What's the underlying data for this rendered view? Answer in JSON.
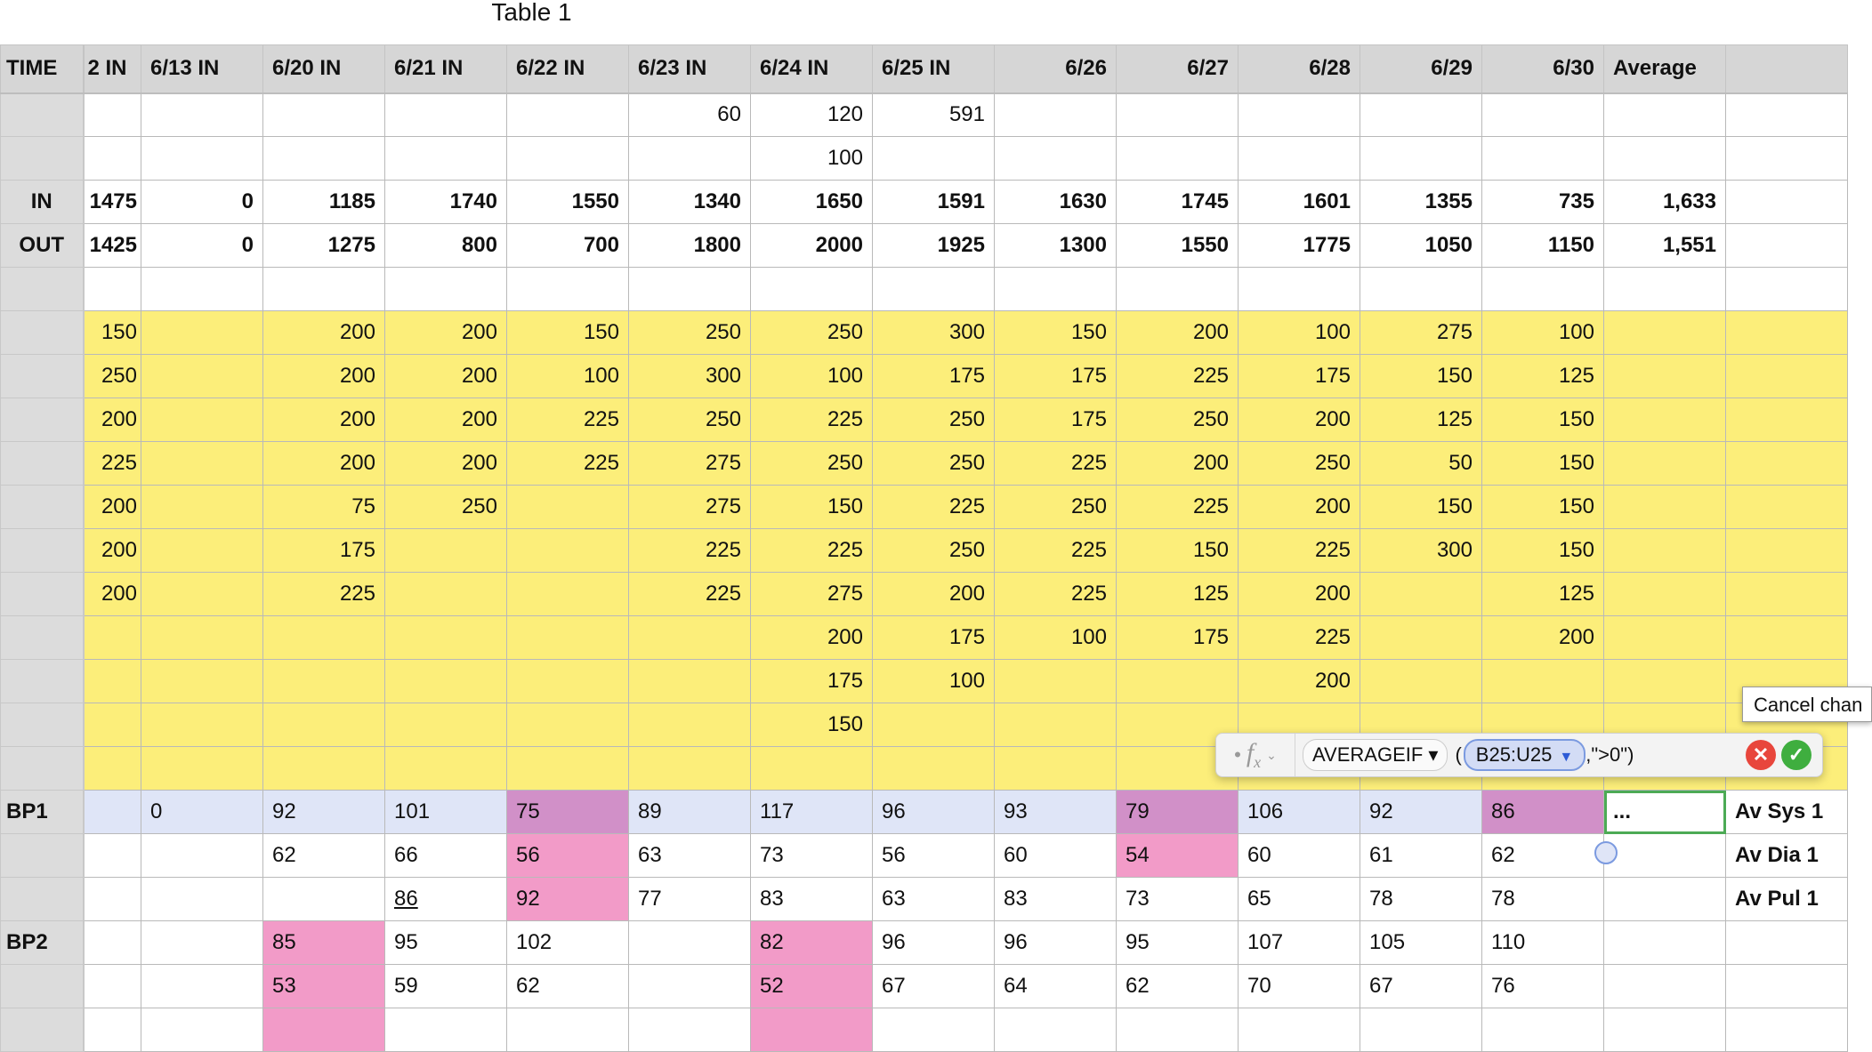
{
  "title": "Table 1",
  "colors": {
    "yellow": "#fcee7a",
    "pink": "#f29bc8",
    "purple": "#d190c8",
    "selection": "#2d5bd6",
    "edit": "#4caa55"
  },
  "header": {
    "row_label": "TIME",
    "columns": [
      "2 IN",
      "6/13 IN",
      "6/20 IN",
      "6/21 IN",
      "6/22 IN",
      "6/23 IN",
      "6/24 IN",
      "6/25 IN",
      "6/26",
      "6/27",
      "6/28",
      "6/29",
      "6/30",
      "Average",
      ""
    ],
    "right_aligned_from": 8
  },
  "rows": [
    {
      "label": "",
      "style": "r",
      "cells": [
        "",
        "",
        "",
        "",
        "",
        "60",
        "120",
        "591",
        "",
        "",
        "",
        "",
        "",
        "",
        ""
      ]
    },
    {
      "label": "",
      "style": "r",
      "cells": [
        "",
        "",
        "",
        "",
        "",
        "",
        "100",
        "",
        "",
        "",
        "",
        "",
        "",
        "",
        ""
      ]
    },
    {
      "label": "IN",
      "style": "r b",
      "cells": [
        "1475",
        "0",
        "1185",
        "1740",
        "1550",
        "1340",
        "1650",
        "1591",
        "1630",
        "1745",
        "1601",
        "1355",
        "735",
        "1,633",
        ""
      ]
    },
    {
      "label": "OUT",
      "style": "r b",
      "cells": [
        "1425",
        "0",
        "1275",
        "800",
        "700",
        "1800",
        "2000",
        "1925",
        "1300",
        "1550",
        "1775",
        "1050",
        "1150",
        "1,551",
        ""
      ]
    },
    {
      "label": "",
      "style": "r",
      "cells": [
        "",
        "",
        "",
        "",
        "",
        "",
        "",
        "",
        "",
        "",
        "",
        "",
        "",
        "",
        ""
      ]
    },
    {
      "label": "",
      "style": "r yellow",
      "cells": [
        "150",
        "",
        "200",
        "200",
        "150",
        "250",
        "250",
        "300",
        "150",
        "200",
        "100",
        "275",
        "100",
        "",
        ""
      ]
    },
    {
      "label": "",
      "style": "r yellow",
      "cells": [
        "250",
        "",
        "200",
        "200",
        "100",
        "300",
        "100",
        "175",
        "175",
        "225",
        "175",
        "150",
        "125",
        "",
        ""
      ]
    },
    {
      "label": "",
      "style": "r yellow",
      "cells": [
        "200",
        "",
        "200",
        "200",
        "225",
        "250",
        "225",
        "250",
        "175",
        "250",
        "200",
        "125",
        "150",
        "",
        ""
      ]
    },
    {
      "label": "",
      "style": "r yellow",
      "cells": [
        "225",
        "",
        "200",
        "200",
        "225",
        "275",
        "250",
        "250",
        "225",
        "200",
        "250",
        "50",
        "150",
        "",
        ""
      ]
    },
    {
      "label": "",
      "style": "r yellow",
      "cells": [
        "200",
        "",
        "75",
        "250",
        "",
        "275",
        "150",
        "225",
        "250",
        "225",
        "200",
        "150",
        "150",
        "",
        ""
      ]
    },
    {
      "label": "",
      "style": "r yellow",
      "cells": [
        "200",
        "",
        "175",
        "",
        "",
        "225",
        "225",
        "250",
        "225",
        "150",
        "225",
        "300",
        "150",
        "",
        ""
      ]
    },
    {
      "label": "",
      "style": "r yellow",
      "cells": [
        "200",
        "",
        "225",
        "",
        "",
        "225",
        "275",
        "200",
        "225",
        "125",
        "200",
        "",
        "125",
        "",
        ""
      ]
    },
    {
      "label": "",
      "style": "r yellow",
      "cells": [
        "",
        "",
        "",
        "",
        "",
        "",
        "200",
        "175",
        "100",
        "175",
        "225",
        "",
        "200",
        "",
        ""
      ]
    },
    {
      "label": "",
      "style": "r yellow",
      "cells": [
        "",
        "",
        "",
        "",
        "",
        "",
        "175",
        "100",
        "",
        "",
        "200",
        "",
        "",
        "",
        ""
      ]
    },
    {
      "label": "",
      "style": "r yellow",
      "cells": [
        "",
        "",
        "",
        "",
        "",
        "",
        "150",
        "",
        "",
        "",
        "",
        "",
        "",
        "",
        ""
      ]
    },
    {
      "label": "",
      "style": "r yellow",
      "cells": [
        "",
        "",
        "",
        "",
        "",
        "",
        "",
        "",
        "",
        "",
        "",
        "",
        "",
        "",
        ""
      ]
    },
    {
      "label": "BP1",
      "style": "l sel",
      "cells": [
        "",
        "0",
        "92",
        "101",
        "75",
        "89",
        "117",
        "96",
        "93",
        "79",
        "106",
        "92",
        "86",
        "...",
        "Av Sys 1"
      ],
      "highlights": {
        "4": "purple",
        "9": "purple",
        "12": "purple"
      },
      "edit_col": 13,
      "label_col": 14
    },
    {
      "label": "",
      "style": "l",
      "cells": [
        "",
        "",
        "62",
        "66",
        "56",
        "63",
        "73",
        "56",
        "60",
        "54",
        "60",
        "61",
        "62",
        "",
        "Av Dia 1"
      ],
      "highlights": {
        "4": "pink",
        "9": "pink"
      },
      "label_col": 14
    },
    {
      "label": "",
      "style": "l",
      "cells": [
        "",
        "",
        "",
        "86",
        "92",
        "77",
        "83",
        "63",
        "83",
        "73",
        "65",
        "78",
        "78",
        "",
        "Av Pul 1"
      ],
      "highlights": {
        "4": "pink"
      },
      "underline": [
        3
      ],
      "label_col": 14
    },
    {
      "label": "BP2",
      "style": "l thick",
      "cells": [
        "",
        "",
        "85",
        "95",
        "102",
        "",
        "82",
        "96",
        "96",
        "95",
        "107",
        "105",
        "110",
        "",
        ""
      ],
      "highlights": {
        "2": "pink",
        "6": "pink"
      }
    },
    {
      "label": "",
      "style": "l",
      "cells": [
        "",
        "",
        "53",
        "59",
        "62",
        "",
        "52",
        "67",
        "64",
        "62",
        "70",
        "67",
        "76",
        "",
        ""
      ],
      "highlights": {
        "2": "pink",
        "6": "pink"
      }
    },
    {
      "label": "",
      "style": "l",
      "cells": [
        "",
        "",
        "",
        "",
        "",
        "",
        "",
        "",
        "",
        "",
        "",
        "",
        "",
        "",
        ""
      ],
      "highlights": {
        "2": "pink",
        "6": "pink"
      }
    }
  ],
  "formula_bar": {
    "icon": "fx-icon",
    "function": "AVERAGEIF",
    "open_paren": "(",
    "range": "B25:U25",
    "criteria": ",\">0\")",
    "cancel_icon": "x-icon",
    "accept_icon": "check-icon"
  },
  "tooltip": "Cancel chan"
}
